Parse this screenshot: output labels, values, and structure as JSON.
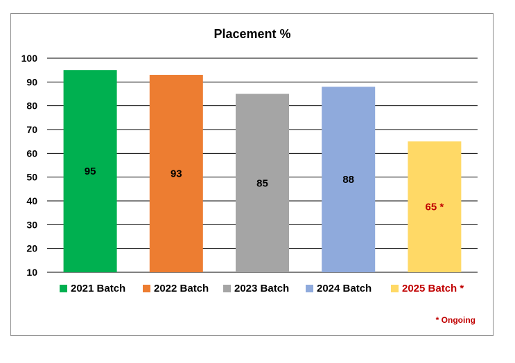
{
  "chart_data": {
    "type": "bar",
    "title": "Placement %",
    "categories": [
      "2021 Batch",
      "2022 Batch",
      "2023 Batch",
      "2024 Batch",
      "2025 Batch *"
    ],
    "values": [
      95,
      93,
      85,
      88,
      65
    ],
    "data_labels": [
      "95",
      "93",
      "85",
      "88",
      "65 *"
    ],
    "colors": [
      "#00b050",
      "#ed7d31",
      "#a5a5a5",
      "#8faadc",
      "#ffd966"
    ],
    "label_colors": [
      "#000000",
      "#000000",
      "#000000",
      "#000000",
      "#c00000"
    ],
    "legend_text_colors": [
      "#000000",
      "#000000",
      "#000000",
      "#000000",
      "#c00000"
    ],
    "ylim": [
      10,
      100
    ],
    "yticks": [
      10,
      20,
      30,
      40,
      50,
      60,
      70,
      80,
      90,
      100
    ],
    "grid": true,
    "legend_position": "bottom",
    "xlabel": "",
    "ylabel": "",
    "footnote": "* Ongoing",
    "footnote_color": "#c00000"
  }
}
